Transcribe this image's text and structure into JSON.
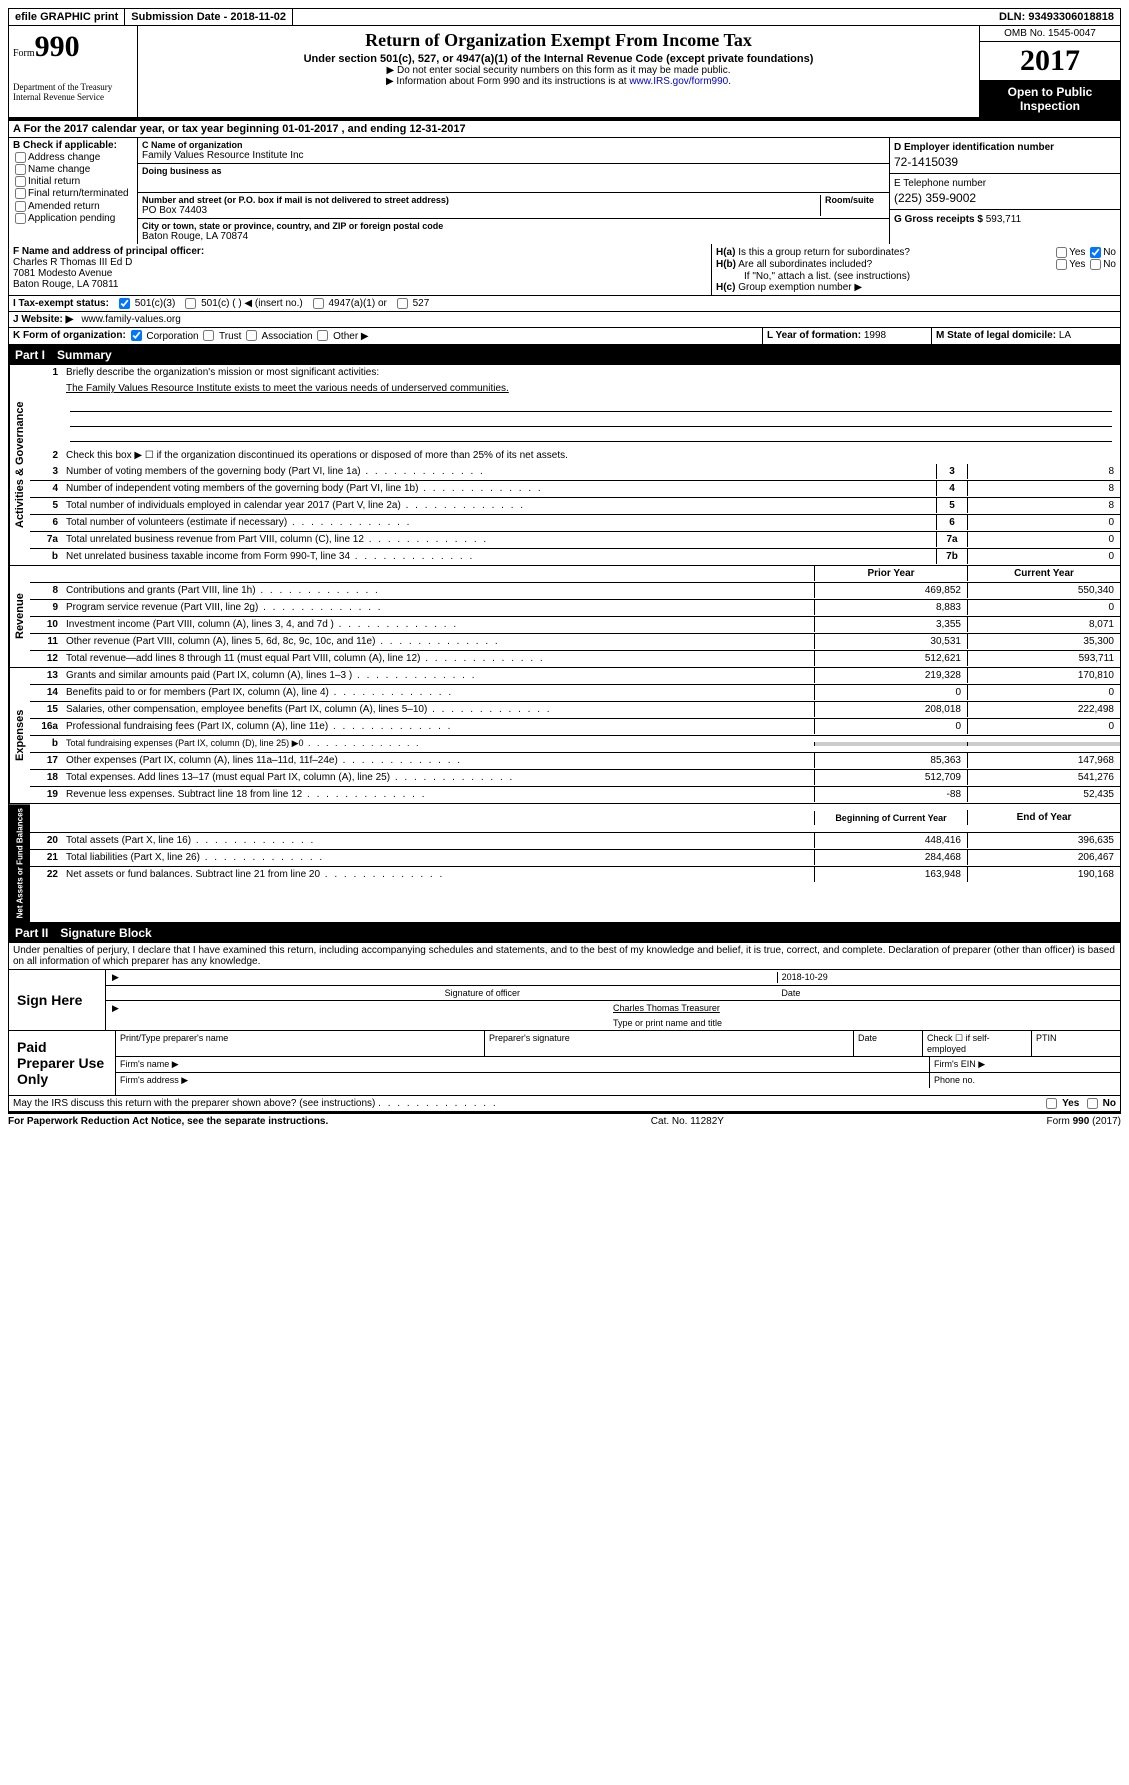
{
  "topbar": {
    "efile": "efile GRAPHIC print",
    "submission_label": "Submission Date - ",
    "submission_date": "2018-11-02",
    "dln_label": "DLN: ",
    "dln": "93493306018818"
  },
  "header": {
    "form_label": "Form",
    "form_number": "990",
    "dept1": "Department of the Treasury",
    "dept2": "Internal Revenue Service",
    "title": "Return of Organization Exempt From Income Tax",
    "subtitle": "Under section 501(c), 527, or 4947(a)(1) of the Internal Revenue Code (except private foundations)",
    "instr1": "▶ Do not enter social security numbers on this form as it may be made public.",
    "instr2_pre": "▶ Information about Form 990 and its instructions is at ",
    "instr2_link": "www.IRS.gov/form990",
    "omb": "OMB No. 1545-0047",
    "year": "2017",
    "open1": "Open to Public",
    "open2": "Inspection"
  },
  "section_a": "A  For the 2017 calendar year, or tax year beginning 01-01-2017   , and ending 12-31-2017",
  "col_b": {
    "title": "B Check if applicable:",
    "opts": [
      "Address change",
      "Name change",
      "Initial return",
      "Final return/terminated",
      "Amended return",
      "Application pending"
    ]
  },
  "col_c": {
    "name_label": "C Name of organization",
    "name": "Family Values Resource Institute Inc",
    "dba_label": "Doing business as",
    "addr_label": "Number and street (or P.O. box if mail is not delivered to street address)",
    "room_label": "Room/suite",
    "addr": "PO Box 74403",
    "city_label": "City or town, state or province, country, and ZIP or foreign postal code",
    "city": "Baton Rouge, LA  70874"
  },
  "col_de": {
    "d_label": "D Employer identification number",
    "d_val": "72-1415039",
    "e_label": "E Telephone number",
    "e_val": "(225) 359-9002",
    "g_label": "G Gross receipts $ ",
    "g_val": "593,711"
  },
  "row_f": {
    "f_label": "F Name and address of principal officer:",
    "f_name": "Charles R Thomas III Ed D",
    "f_addr1": "7081 Modesto Avenue",
    "f_addr2": "Baton Rouge, LA  70811",
    "ha_label": "H(a)",
    "ha_text": "Is this a group return for subordinates?",
    "hb_label": "H(b)",
    "hb_text": "Are all subordinates included?",
    "hb_note": "If \"No,\" attach a list. (see instructions)",
    "hc_label": "H(c)",
    "hc_text": "Group exemption number ▶",
    "yes": "Yes",
    "no": "No"
  },
  "row_i": {
    "label": "I  Tax-exempt status:",
    "o1": "501(c)(3)",
    "o2": "501(c) (  ) ◀ (insert no.)",
    "o3": "4947(a)(1) or",
    "o4": "527"
  },
  "row_j": {
    "label": "J  Website: ▶",
    "val": "www.family-values.org"
  },
  "row_k": {
    "label": "K Form of organization:",
    "o1": "Corporation",
    "o2": "Trust",
    "o3": "Association",
    "o4": "Other ▶",
    "l_label": "L Year of formation: ",
    "l_val": "1998",
    "m_label": "M State of legal domicile: ",
    "m_val": "LA"
  },
  "part1": {
    "header_part": "Part I",
    "header_title": "Summary",
    "vtab1": "Activities & Governance",
    "l1_num": "1",
    "l1": "Briefly describe the organization's mission or most significant activities:",
    "l1_val": "The Family Values Resource Institute exists to meet the various needs of underserved communities.",
    "l2_num": "2",
    "l2": "Check this box ▶ ☐  if the organization discontinued its operations or disposed of more than 25% of its net assets.",
    "rows_gov": [
      {
        "num": "3",
        "desc": "Number of voting members of the governing body (Part VI, line 1a)",
        "box": "3",
        "val": "8"
      },
      {
        "num": "4",
        "desc": "Number of independent voting members of the governing body (Part VI, line 1b)",
        "box": "4",
        "val": "8"
      },
      {
        "num": "5",
        "desc": "Total number of individuals employed in calendar year 2017 (Part V, line 2a)",
        "box": "5",
        "val": "8"
      },
      {
        "num": "6",
        "desc": "Total number of volunteers (estimate if necessary)",
        "box": "6",
        "val": "0"
      },
      {
        "num": "7a",
        "desc": "Total unrelated business revenue from Part VIII, column (C), line 12",
        "box": "7a",
        "val": "0"
      },
      {
        "num": "b",
        "desc": "Net unrelated business taxable income from Form 990-T, line 34",
        "box": "7b",
        "val": "0"
      }
    ],
    "th_prior": "Prior Year",
    "th_current": "Current Year",
    "vtab2": "Revenue",
    "rows_rev": [
      {
        "num": "8",
        "desc": "Contributions and grants (Part VIII, line 1h)",
        "v1": "469,852",
        "v2": "550,340"
      },
      {
        "num": "9",
        "desc": "Program service revenue (Part VIII, line 2g)",
        "v1": "8,883",
        "v2": "0"
      },
      {
        "num": "10",
        "desc": "Investment income (Part VIII, column (A), lines 3, 4, and 7d )",
        "v1": "3,355",
        "v2": "8,071"
      },
      {
        "num": "11",
        "desc": "Other revenue (Part VIII, column (A), lines 5, 6d, 8c, 9c, 10c, and 11e)",
        "v1": "30,531",
        "v2": "35,300"
      },
      {
        "num": "12",
        "desc": "Total revenue—add lines 8 through 11 (must equal Part VIII, column (A), line 12)",
        "v1": "512,621",
        "v2": "593,711"
      }
    ],
    "vtab3": "Expenses",
    "rows_exp": [
      {
        "num": "13",
        "desc": "Grants and similar amounts paid (Part IX, column (A), lines 1–3 )",
        "v1": "219,328",
        "v2": "170,810"
      },
      {
        "num": "14",
        "desc": "Benefits paid to or for members (Part IX, column (A), line 4)",
        "v1": "0",
        "v2": "0"
      },
      {
        "num": "15",
        "desc": "Salaries, other compensation, employee benefits (Part IX, column (A), lines 5–10)",
        "v1": "208,018",
        "v2": "222,498"
      },
      {
        "num": "16a",
        "desc": "Professional fundraising fees (Part IX, column (A), line 11e)",
        "v1": "0",
        "v2": "0"
      },
      {
        "num": "b",
        "desc": "Total fundraising expenses (Part IX, column (D), line 25) ▶0",
        "v1": "",
        "v2": "",
        "grey": true,
        "small": true
      },
      {
        "num": "17",
        "desc": "Other expenses (Part IX, column (A), lines 11a–11d, 11f–24e)",
        "v1": "85,363",
        "v2": "147,968"
      },
      {
        "num": "18",
        "desc": "Total expenses. Add lines 13–17 (must equal Part IX, column (A), line 25)",
        "v1": "512,709",
        "v2": "541,276"
      },
      {
        "num": "19",
        "desc": "Revenue less expenses. Subtract line 18 from line 12",
        "v1": "-88",
        "v2": "52,435"
      }
    ],
    "th_begin": "Beginning of Current Year",
    "th_end": "End of Year",
    "vtab4": "Net Assets or Fund Balances",
    "rows_net": [
      {
        "num": "20",
        "desc": "Total assets (Part X, line 16)",
        "v1": "448,416",
        "v2": "396,635"
      },
      {
        "num": "21",
        "desc": "Total liabilities (Part X, line 26)",
        "v1": "284,468",
        "v2": "206,467"
      },
      {
        "num": "22",
        "desc": "Net assets or fund balances. Subtract line 21 from line 20",
        "v1": "163,948",
        "v2": "190,168"
      }
    ]
  },
  "part2": {
    "header_part": "Part II",
    "header_title": "Signature Block",
    "penalty": "Under penalties of perjury, I declare that I have examined this return, including accompanying schedules and statements, and to the best of my knowledge and belief, it is true, correct, and complete. Declaration of preparer (other than officer) is based on all information of which preparer has any knowledge.",
    "sign_here": "Sign Here",
    "sig_date": "2018-10-29",
    "sig_officer_label": "Signature of officer",
    "date_label": "Date",
    "typed_name": "Charles Thomas Treasurer",
    "typed_label": "Type or print name and title",
    "paid_prep": "Paid Preparer Use Only",
    "pp_name": "Print/Type preparer's name",
    "pp_sig": "Preparer's signature",
    "pp_date": "Date",
    "pp_check": "Check ☐ if self-employed",
    "pp_ptin": "PTIN",
    "firm_name": "Firm's name   ▶",
    "firm_ein": "Firm's EIN ▶",
    "firm_addr": "Firm's address ▶",
    "phone": "Phone no."
  },
  "footer": {
    "discuss": "May the IRS discuss this return with the preparer shown above? (see instructions)",
    "yes": "Yes",
    "no": "No",
    "pra": "For Paperwork Reduction Act Notice, see the separate instructions.",
    "cat": "Cat. No. 11282Y",
    "form": "Form 990 (2017)"
  }
}
